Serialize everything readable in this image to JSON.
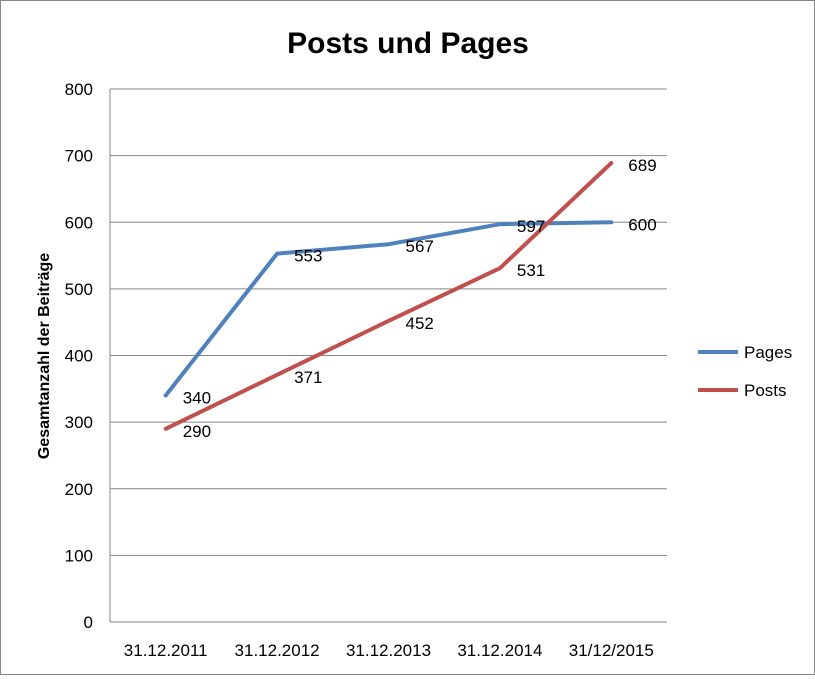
{
  "chart_data": {
    "type": "line",
    "title": "Posts und Pages",
    "xlabel": "",
    "ylabel": "Gesamtanzahl der Beiträge",
    "categories": [
      "31.12.2011",
      "31.12.2012",
      "31.12.2013",
      "31.12.2014",
      "31/12/2015"
    ],
    "ylim": [
      0,
      800
    ],
    "yticks": [
      0,
      100,
      200,
      300,
      400,
      500,
      600,
      700,
      800
    ],
    "grid": true,
    "legend_position": "right",
    "series": [
      {
        "name": "Pages",
        "color": "#4f81bd",
        "values": [
          340,
          553,
          567,
          597,
          600
        ],
        "labels": [
          "340",
          "553",
          "567",
          "597",
          "600"
        ]
      },
      {
        "name": "Posts",
        "color": "#c0504d",
        "values": [
          290,
          371,
          452,
          531,
          689
        ],
        "labels": [
          "290",
          "371",
          "452",
          "531",
          "689"
        ]
      }
    ]
  }
}
